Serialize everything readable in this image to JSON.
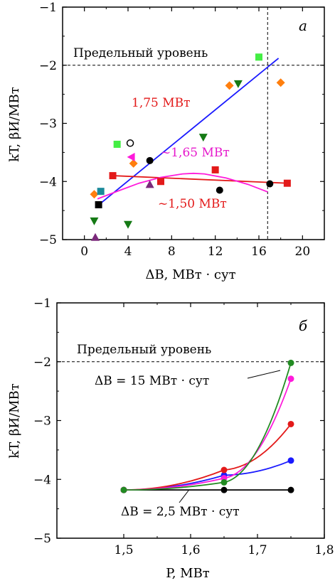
{
  "chart_data": [
    {
      "type": "scatter",
      "panel_label": "а",
      "xlabel": "ΔB, МВт · сут",
      "ylabel": "kT, βИ/МВт",
      "xlim": [
        -2,
        22
      ],
      "ylim": [
        -5,
        -1
      ],
      "xticks": [
        0,
        4,
        8,
        12,
        16,
        20
      ],
      "yticks": [
        -5,
        -4,
        -3,
        -2,
        -1
      ],
      "limit_label": "Предельный уровень",
      "limit_y": -2,
      "vline_x": 16.8,
      "grid": false,
      "points": [
        {
          "x": 0.9,
          "y": -4.22,
          "shape": "diamond",
          "color": "#ff7f0e"
        },
        {
          "x": 1.5,
          "y": -4.17,
          "shape": "square",
          "color": "#1a8a9a"
        },
        {
          "x": 1.3,
          "y": -4.4,
          "shape": "square",
          "color": "#000000"
        },
        {
          "x": 0.9,
          "y": -4.68,
          "shape": "triangle-down",
          "color": "#157a15"
        },
        {
          "x": 1.0,
          "y": -4.96,
          "shape": "triangle-up",
          "color": "#7b2a7b"
        },
        {
          "x": 2.6,
          "y": -3.9,
          "shape": "square",
          "color": "#e31a1a"
        },
        {
          "x": 3.0,
          "y": -3.36,
          "shape": "square",
          "color": "#44ee44"
        },
        {
          "x": 4.0,
          "y": -4.74,
          "shape": "triangle-down",
          "color": "#157a15"
        },
        {
          "x": 4.2,
          "y": -3.34,
          "shape": "circle-open",
          "color": "#000000"
        },
        {
          "x": 4.5,
          "y": -3.69,
          "shape": "diamond",
          "color": "#ff7f0e"
        },
        {
          "x": 4.3,
          "y": -3.58,
          "shape": "triangle-left",
          "color": "#ff1adb"
        },
        {
          "x": 6.0,
          "y": -3.64,
          "shape": "circle",
          "color": "#000000"
        },
        {
          "x": 6.0,
          "y": -4.05,
          "shape": "triangle-up",
          "color": "#7b2a7b"
        },
        {
          "x": 7.0,
          "y": -4.0,
          "shape": "square",
          "color": "#e31a1a"
        },
        {
          "x": 10.9,
          "y": -3.24,
          "shape": "triangle-down",
          "color": "#157a15"
        },
        {
          "x": 12.0,
          "y": -3.8,
          "shape": "square",
          "color": "#e31a1a"
        },
        {
          "x": 12.4,
          "y": -4.15,
          "shape": "circle",
          "color": "#000000"
        },
        {
          "x": 13.3,
          "y": -2.35,
          "shape": "diamond",
          "color": "#ff7f0e"
        },
        {
          "x": 14.1,
          "y": -2.32,
          "shape": "triangle-down",
          "color": "#157a15"
        },
        {
          "x": 16.0,
          "y": -1.86,
          "shape": "square",
          "color": "#44ee44"
        },
        {
          "x": 17.0,
          "y": -4.04,
          "shape": "circle",
          "color": "#000000"
        },
        {
          "x": 18.0,
          "y": -2.3,
          "shape": "diamond",
          "color": "#ff7f0e"
        },
        {
          "x": 18.6,
          "y": -4.03,
          "shape": "square",
          "color": "#e31a1a"
        }
      ],
      "fit_lines": [
        {
          "label": "1,75 МВт",
          "color": "#1a1aff",
          "x": [
            1.0,
            17.8
          ],
          "y": [
            -4.45,
            -1.88
          ]
        },
        {
          "label": "~1,50 МВт",
          "color": "#e31a1a",
          "x": [
            2.6,
            18.6
          ],
          "y": [
            -3.9,
            -4.03
          ]
        }
      ],
      "fit_curves": [
        {
          "label": "~1,65 МВт",
          "color": "#ff1adb",
          "x": [
            1.2,
            3,
            5,
            7,
            9,
            10,
            11,
            13,
            15,
            16.8
          ],
          "y": [
            -4.3,
            -4.17,
            -4.03,
            -3.93,
            -3.87,
            -3.86,
            -3.87,
            -3.94,
            -4.05,
            -4.18
          ]
        }
      ],
      "annotations": [
        "1,75 МВт",
        "~1,65 МВт",
        "~1,50 МВт"
      ]
    },
    {
      "type": "line",
      "panel_label": "б",
      "xlabel": "P, МВт",
      "ylabel": "kT, βИ/МВт",
      "xlim": [
        1.4,
        1.8
      ],
      "ylim": [
        -5,
        -1
      ],
      "xticks": [
        1.5,
        1.6,
        1.7,
        1.8
      ],
      "xtick_labels": [
        "1,5",
        "1,6",
        "1,7",
        "1,8"
      ],
      "yticks": [
        -5,
        -4,
        -3,
        -2,
        -1
      ],
      "limit_label": "Предельный уровень",
      "limit_y": -2,
      "grid": false,
      "series": [
        {
          "color": "#000000",
          "x": [
            1.5,
            1.65,
            1.75
          ],
          "y": [
            -4.18,
            -4.18,
            -4.18
          ]
        },
        {
          "color": "#1a1aff",
          "x": [
            1.5,
            1.65,
            1.75
          ],
          "y": [
            -4.18,
            -3.93,
            -3.68
          ]
        },
        {
          "color": "#e31a1a",
          "x": [
            1.5,
            1.65,
            1.75
          ],
          "y": [
            -4.18,
            -3.84,
            -3.06
          ]
        },
        {
          "color": "#ff1adb",
          "x": [
            1.5,
            1.65,
            1.75
          ],
          "y": [
            -4.18,
            -3.98,
            -2.29
          ]
        },
        {
          "color": "#228b22",
          "x": [
            1.5,
            1.65,
            1.75
          ],
          "y": [
            -4.18,
            -4.05,
            -2.02
          ]
        }
      ],
      "annotations": [
        {
          "text": "ΔB = 15 МВт · сут"
        },
        {
          "text": "ΔB = 2,5 МВт · сут"
        }
      ]
    }
  ]
}
